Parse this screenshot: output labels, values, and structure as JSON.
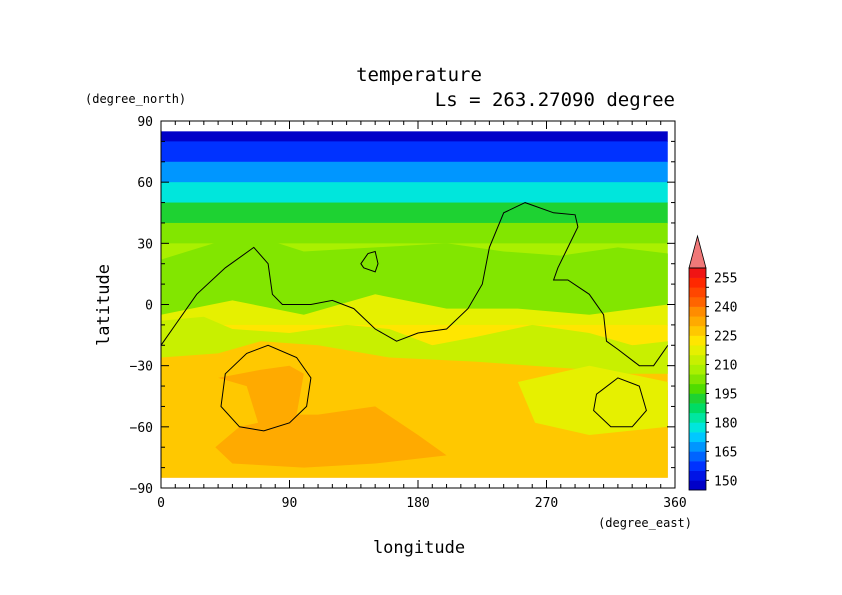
{
  "chart_data": {
    "type": "heatmap",
    "title": "temperature",
    "subtitle": "Ls = 263.27090 degree",
    "xlabel": "longitude",
    "ylabel": "latitude",
    "xunit": "(degree_east)",
    "yunit": "(degree_north)",
    "xlim": [
      0,
      360
    ],
    "ylim": [
      -90,
      90
    ],
    "xticks": [
      0,
      90,
      180,
      270,
      360
    ],
    "yticks": [
      90,
      60,
      30,
      0,
      -30,
      -60,
      -90
    ],
    "data_extent": {
      "lon": [
        0,
        355
      ],
      "lat": [
        -85,
        85
      ]
    },
    "colorbar": {
      "levels": [
        145,
        150,
        155,
        160,
        165,
        170,
        175,
        180,
        185,
        190,
        195,
        200,
        205,
        210,
        215,
        220,
        225,
        230,
        235,
        240,
        245,
        250,
        255,
        260
      ],
      "labels": [
        150,
        165,
        180,
        195,
        210,
        225,
        240,
        255
      ],
      "colors": [
        "#0000c8",
        "#0014e6",
        "#0032ff",
        "#0064ff",
        "#0096ff",
        "#00c8ff",
        "#00e6dc",
        "#00e6a0",
        "#00dc64",
        "#1ed232",
        "#50dc00",
        "#82e600",
        "#aaf000",
        "#c8f000",
        "#e6f000",
        "#ffe600",
        "#ffc800",
        "#ffaa00",
        "#ff8c00",
        "#ff6400",
        "#ff4600",
        "#ff2800",
        "#f01414"
      ],
      "extend_top_color": "#f07878"
    },
    "temperature_profile_by_latitude": [
      {
        "lat": 85,
        "t": 147
      },
      {
        "lat": 75,
        "t": 155
      },
      {
        "lat": 65,
        "t": 165
      },
      {
        "lat": 55,
        "t": 178
      },
      {
        "lat": 45,
        "t": 190
      },
      {
        "lat": 35,
        "t": 200
      },
      {
        "lat": 25,
        "t": 208
      },
      {
        "lat": 15,
        "t": 213
      },
      {
        "lat": 5,
        "t": 216
      },
      {
        "lat": -5,
        "t": 219
      },
      {
        "lat": -15,
        "t": 222
      },
      {
        "lat": -25,
        "t": 226
      },
      {
        "lat": -35,
        "t": 229
      },
      {
        "lat": -50,
        "t": 231
      },
      {
        "lat": -65,
        "t": 233
      },
      {
        "lat": -80,
        "t": 232
      }
    ],
    "regions": [
      {
        "t": 200,
        "points": [
          [
            0,
            22
          ],
          [
            60,
            35
          ],
          [
            100,
            26
          ],
          [
            150,
            28
          ],
          [
            200,
            30
          ],
          [
            240,
            26
          ],
          [
            280,
            24
          ],
          [
            320,
            28
          ],
          [
            355,
            25
          ],
          [
            355,
            0
          ],
          [
            300,
            -5
          ],
          [
            250,
            -2
          ],
          [
            200,
            -2
          ],
          [
            150,
            5
          ],
          [
            100,
            -5
          ],
          [
            50,
            2
          ],
          [
            0,
            -5
          ]
        ]
      },
      {
        "t": 214,
        "points": [
          [
            0,
            -8
          ],
          [
            30,
            -6
          ],
          [
            50,
            -12
          ],
          [
            90,
            -14
          ],
          [
            130,
            -10
          ],
          [
            160,
            -12
          ],
          [
            190,
            -20
          ],
          [
            220,
            -16
          ],
          [
            260,
            -10
          ],
          [
            300,
            -14
          ],
          [
            330,
            -20
          ],
          [
            355,
            -18
          ],
          [
            355,
            -34
          ],
          [
            0,
            -34
          ]
        ]
      },
      {
        "t": 226,
        "points": [
          [
            0,
            -26
          ],
          [
            40,
            -24
          ],
          [
            70,
            -18
          ],
          [
            110,
            -20
          ],
          [
            160,
            -26
          ],
          [
            220,
            -28
          ],
          [
            260,
            -30
          ],
          [
            300,
            -32
          ],
          [
            355,
            -42
          ],
          [
            355,
            -85
          ],
          [
            0,
            -85
          ]
        ]
      },
      {
        "t": 216,
        "points": [
          [
            250,
            -38
          ],
          [
            300,
            -30
          ],
          [
            355,
            -38
          ],
          [
            355,
            -60
          ],
          [
            300,
            -64
          ],
          [
            262,
            -58
          ]
        ]
      },
      {
        "t": 232,
        "points": [
          [
            40,
            -36
          ],
          [
            70,
            -32
          ],
          [
            90,
            -30
          ],
          [
            100,
            -34
          ],
          [
            95,
            -54
          ],
          [
            110,
            -54
          ],
          [
            150,
            -50
          ],
          [
            180,
            -64
          ],
          [
            200,
            -74
          ],
          [
            150,
            -78
          ],
          [
            100,
            -80
          ],
          [
            50,
            -78
          ],
          [
            38,
            -70
          ],
          [
            55,
            -60
          ],
          [
            68,
            -58
          ],
          [
            60,
            -40
          ]
        ]
      }
    ],
    "contours": [
      {
        "t": 210,
        "points": [
          [
            0,
            -20
          ],
          [
            10,
            -10
          ],
          [
            25,
            5
          ],
          [
            45,
            18
          ],
          [
            65,
            28
          ],
          [
            75,
            20
          ],
          [
            78,
            5
          ],
          [
            85,
            0
          ],
          [
            105,
            0
          ],
          [
            120,
            2
          ],
          [
            135,
            -2
          ],
          [
            150,
            -12
          ],
          [
            165,
            -18
          ],
          [
            180,
            -14
          ],
          [
            200,
            -12
          ],
          [
            215,
            -2
          ],
          [
            225,
            10
          ],
          [
            230,
            28
          ],
          [
            240,
            45
          ],
          [
            255,
            50
          ],
          [
            275,
            45
          ],
          [
            290,
            44
          ],
          [
            292,
            38
          ],
          [
            285,
            28
          ],
          [
            278,
            18
          ],
          [
            275,
            12
          ],
          [
            285,
            12
          ],
          [
            300,
            5
          ],
          [
            310,
            -5
          ],
          [
            312,
            -18
          ],
          [
            320,
            -22
          ],
          [
            335,
            -30
          ],
          [
            345,
            -30
          ],
          [
            355,
            -20
          ]
        ]
      },
      {
        "t": 210,
        "closed": true,
        "points": [
          [
            140,
            20
          ],
          [
            145,
            25
          ],
          [
            150,
            26
          ],
          [
            152,
            20
          ],
          [
            150,
            16
          ],
          [
            142,
            18
          ]
        ]
      },
      {
        "t": 225,
        "closed": true,
        "points": [
          [
            45,
            -34
          ],
          [
            60,
            -24
          ],
          [
            75,
            -20
          ],
          [
            95,
            -26
          ],
          [
            105,
            -36
          ],
          [
            102,
            -50
          ],
          [
            90,
            -58
          ],
          [
            72,
            -62
          ],
          [
            55,
            -60
          ],
          [
            42,
            -50
          ]
        ]
      },
      {
        "t": 225,
        "closed": true,
        "points": [
          [
            305,
            -44
          ],
          [
            320,
            -36
          ],
          [
            335,
            -40
          ],
          [
            340,
            -52
          ],
          [
            330,
            -60
          ],
          [
            315,
            -60
          ],
          [
            303,
            -52
          ]
        ]
      }
    ]
  }
}
